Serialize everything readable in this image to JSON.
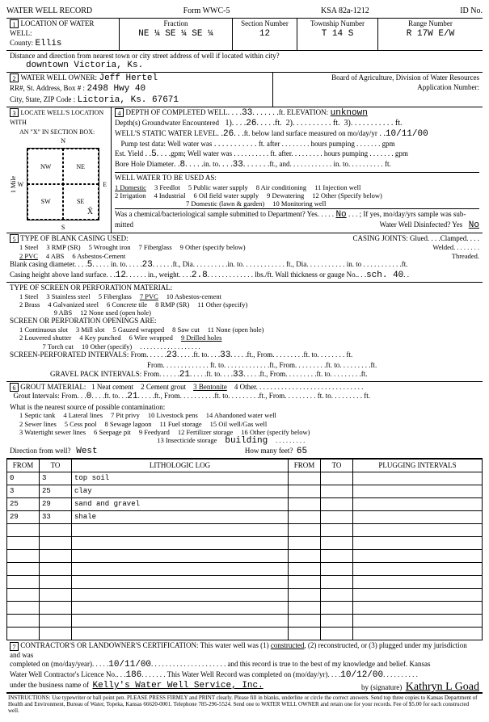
{
  "header": {
    "title": "WATER WELL RECORD",
    "form": "Form WWC-5",
    "ksa": "KSA 82a-1212",
    "id_label": "ID No."
  },
  "loc": {
    "label": "LOCATION OF WATER WELL:",
    "county_label": "County:",
    "county": "Ellis",
    "fraction_label": "Fraction",
    "fraction": "NE ¼   SE ¼   SE ¼",
    "section_label": "Section Number",
    "section": "12",
    "township_label": "Township Number",
    "township": "T  14     S",
    "range_label": "Range Number",
    "range": "R   17W   E/W",
    "dist_label": "Distance and direction from nearest town or city street address of well if located within city?",
    "dist": "downtown Victoria, Ks."
  },
  "owner": {
    "label": "WATER WELL OWNER:",
    "name": "Jeff Hertel",
    "addr_label": "RR#, St. Address, Box #  :",
    "addr": "2498 Hwy 40",
    "city_label": "City, State, ZIP Code    :",
    "city": "Lictoria, Ks. 67671",
    "board": "Board of Agriculture, Division of Water Resources",
    "app_label": "Application Number:"
  },
  "s3": {
    "label": "LOCATE WELL'S LOCATION WITH",
    "sub": "AN \"X\" IN SECTION BOX:",
    "nw": "NW",
    "ne": "NE",
    "sw": "SW",
    "se": "SE",
    "n": "N",
    "s": "S",
    "e": "E",
    "w": "W",
    "mile": "1 Mile"
  },
  "s4": {
    "label": "DEPTH OF COMPLETED WELL",
    "depth": "33",
    "elev_label": "ft. ELEVATION:",
    "elev": "unknown",
    "gw_label": "Depth(s) Groundwater Encountered",
    "gw1": "26",
    "static_label": "WELL'S STATIC WATER LEVEL",
    "static": "26",
    "static_tail": "ft. below land surface measured on mo/day/yr",
    "static_date": "10/11/00",
    "pump_label": "Pump test data: Well water was",
    "pump_tail": "ft. after . . . . . . . . hours pumping . . . . . . . gpm",
    "est_label": "Est. Yield",
    "est": "5",
    "est_tail": "gpm; Well water was . . . . . . . . . . ft. after. . . . . . . . . hours pumping . . . . . . . gpm",
    "bore_label": "Bore Hole Diameter",
    "bore1": "8",
    "bore_mid": "in. to",
    "bore2": "33",
    "bore_tail": "ft., and. . . . . . . . . . . . in.  to. . . . . . . . . . ft.",
    "use_label": "WELL WATER TO BE USED AS:",
    "uses": [
      "1 Domestic",
      "2 Irrigation",
      "3 Feedlot",
      "4 Industrial",
      "5 Public water supply",
      "6 Oil field water supply",
      "7 Domestic (lawn & garden)",
      "8 Air conditioning",
      "9 Dewatering",
      "10 Monitoring well",
      "11 Injection well",
      "12 Other (Specify below)"
    ],
    "use_sel": "1 Domestic",
    "chem_label": "Was a chemical/bacteriological sample submitted to Department? Yes. . . . .",
    "chem_no": "No",
    "chem_tail": ". . . ; If yes, mo/day/yrs sample was sub-",
    "mitted": "mitted",
    "disinf_label": "Water Well Disinfected?  Yes",
    "disinf_no": "No"
  },
  "s5": {
    "label": "TYPE OF BLANK CASING USED:",
    "opts": [
      "1 Steel",
      "2 PVC",
      "3 RMP (SR)",
      "4 ABS",
      "5 Wrought iron",
      "6 Asbestos-Cement",
      "7 Fiberglass",
      "8 Concrete tile",
      "9 Other (specify below)"
    ],
    "sel": "2 PVC",
    "joints_label": "CASING JOINTS: Glued. . . .Clamped. . . .",
    "joints2": "Welded. . . . . . . .",
    "joints3": "Threaded.",
    "diam_label": "Blank casing diameter",
    "diam": "5",
    "diam_to": "23",
    "height_label": "Casing height above land surface",
    "height": "12",
    "weight_label": "in., weight",
    "weight": "2.8",
    "gauge_label": "lbs./ft. Wall thickness or gauge No.",
    "gauge": "sch. 40"
  },
  "screen": {
    "label": "TYPE OF SCREEN OR PERFORATION MATERIAL:",
    "opts": [
      "1 Steel",
      "2 Brass",
      "3 Stainless steel",
      "4 Galvanized steel",
      "5 Fiberglass",
      "6 Concrete tile",
      "7 PVC",
      "8 RMP (SR)",
      "9 ABS",
      "10 Asbestos-cement",
      "11 Other (specify)",
      "12 None used (open hole)"
    ],
    "sel": "7 PVC",
    "open_label": "SCREEN OR PERFORATION OPENINGS ARE:",
    "open_opts": [
      "1 Continuous slot",
      "2 Louvered shutter",
      "3 Mill slot",
      "4 Key punched",
      "5 Gauzed wrapped",
      "6 Wire wrapped",
      "7 Torch cut",
      "8 Saw cut",
      "9 Drilled holes",
      "10 Other (specify)",
      "11 None (open hole)"
    ],
    "open_sel": "9 Drilled holes",
    "perf_label": "SCREEN-PERFORATED INTERVALS:  From",
    "perf_from": "23",
    "perf_to": "33",
    "pack_label": "GRAVEL PACK INTERVALS:  From",
    "pack_from": "21",
    "pack_to": "33"
  },
  "s6": {
    "label": "GROUT MATERIAL:",
    "opts": [
      "1 Neat cement",
      "2 Cement grout",
      "3 Bentonite",
      "4 Other"
    ],
    "sel": "3 Bentonite",
    "int_label": "Grout Intervals:  From",
    "int_from": "0",
    "int_to": "21",
    "src_label": "What is the nearest source of possible contamination:",
    "src_opts": [
      "1 Septic tank",
      "2 Sewer lines",
      "3 Watertight sewer lines",
      "4 Lateral lines",
      "5 Cess pool",
      "6 Seepage pit",
      "7 Pit privy",
      "8 Sewage lagoon",
      "9 Feedyard",
      "10 Livestock pens",
      "11 Fuel storage",
      "12 Fertilizer storage",
      "13 Insecticide storage",
      "14 Abandoned water well",
      "15 Oil well/Gas well",
      "16 Other (specify below)"
    ],
    "src_other": "building",
    "dir_label": "Direction from well?",
    "dir": "West",
    "feet_label": "How many feet?",
    "feet": "65"
  },
  "log": {
    "cols": [
      "FROM",
      "TO",
      "LITHOLOGIC LOG",
      "FROM",
      "TO",
      "PLUGGING INTERVALS"
    ],
    "rows": [
      [
        "0",
        "3",
        "top soil",
        "",
        "",
        ""
      ],
      [
        "3",
        "25",
        "clay",
        "",
        "",
        ""
      ],
      [
        "25",
        "29",
        "sand and gravel",
        "",
        "",
        ""
      ],
      [
        "29",
        "33",
        "shale",
        "",
        "",
        ""
      ]
    ],
    "blank_rows": 9
  },
  "s7": {
    "text1": "CONTRACTOR'S OR LANDOWNER'S CERTIFICATION: This water well was (1)",
    "text1u": "constructed",
    "text1b": ", (2) reconstructed, or (3) plugged under my jurisdiction and was",
    "text2": "completed on (mo/day/year)",
    "date1": "10/11/00",
    "text2b": "and this record is true to the best of my knowledge and belief. Kansas",
    "text3": "Water Well Contractor's Licence No.",
    "lic": "186",
    "text3b": ". This Water Well Record was completed on (mo/day/yr)",
    "date2": "10/12/00",
    "text4": "under the business name of",
    "biz": "Kelly's Water Well Service, Inc.",
    "sig_label": "by (signature)",
    "sig": "Kathryn L Goad"
  },
  "footer": "INSTRUCTIONS: Use typewriter or ball point pen. PLEASE PRESS FIRMLY and PRINT clearly. Please fill in blanks, underline or circle the correct answers. Send top three copies to Kansas Department of Health and Environment, Bureau of Water, Topeka, Kansas 66620-0001. Telephone 785-296-5524. Send one to WATER WELL OWNER and retain one for your records. Fee of $5.00 for each constructed well."
}
